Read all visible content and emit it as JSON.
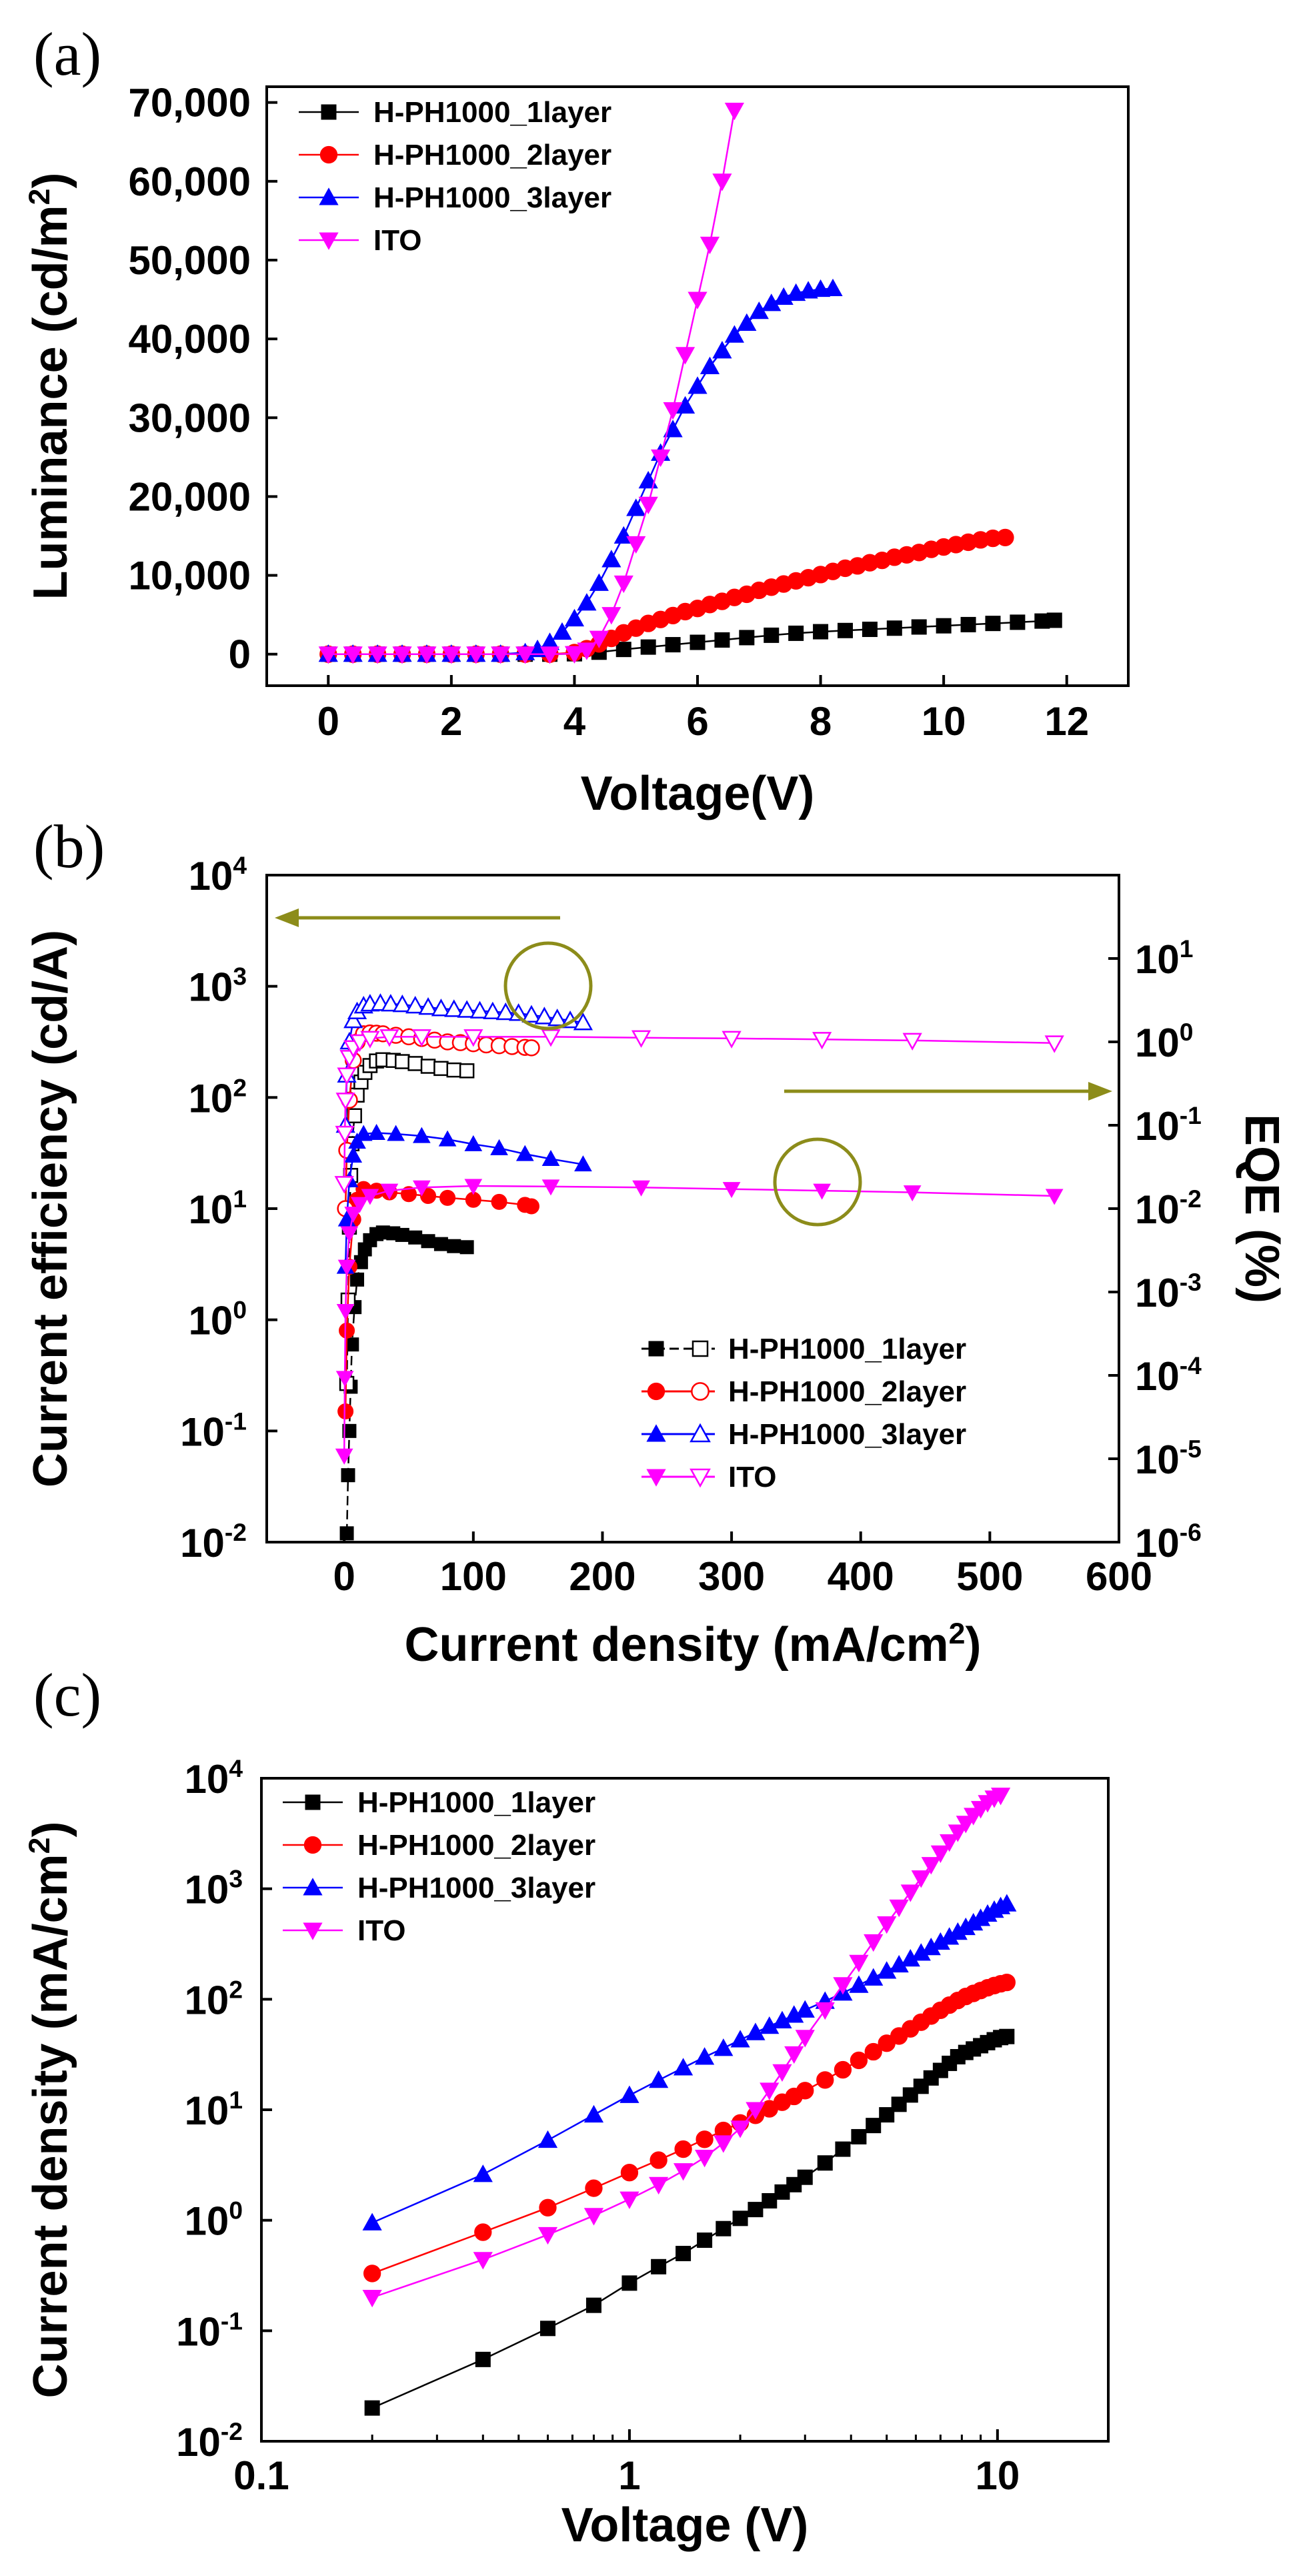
{
  "colors": {
    "black": "#000000",
    "red": "#ff0000",
    "blue": "#0000ff",
    "magenta": "#ff00ff",
    "olive": "#8c8c1a"
  },
  "chart_data": [
    {
      "panel": "(a)",
      "type": "line",
      "xlabel": "Voltage(V)",
      "ylabel_main": "Luminance (cd/m",
      "ylabel_sup": "2",
      "ylabel_end": ")",
      "xlim": [
        -1,
        13
      ],
      "ylim": [
        -4000,
        72000
      ],
      "x_ticks": [
        0,
        2,
        4,
        6,
        8,
        10,
        12
      ],
      "x_tick_labels": [
        "0",
        "2",
        "4",
        "6",
        "8",
        "10",
        "12"
      ],
      "y_ticks": [
        0,
        10000,
        20000,
        30000,
        40000,
        50000,
        60000,
        70000
      ],
      "y_tick_labels": [
        "0",
        "10,000",
        "20,000",
        "30,000",
        "40,000",
        "50,000",
        "60,000",
        "70,000"
      ],
      "legend_position": "top-left",
      "series": [
        {
          "name": "H-PH1000_1layer",
          "color": "#000000",
          "marker": "square",
          "x": [
            0,
            0.4,
            0.8,
            1.2,
            1.6,
            2.0,
            2.4,
            2.8,
            3.2,
            3.6,
            4.0,
            4.4,
            4.8,
            5.2,
            5.6,
            6.0,
            6.4,
            6.8,
            7.2,
            7.6,
            8.0,
            8.4,
            8.8,
            9.2,
            9.6,
            10.0,
            10.4,
            10.8,
            11.2,
            11.6,
            11.8
          ],
          "y": [
            0,
            0,
            0,
            0,
            0,
            0,
            0,
            0,
            0,
            0,
            50,
            250,
            600,
            900,
            1200,
            1500,
            1800,
            2100,
            2400,
            2650,
            2850,
            3000,
            3150,
            3300,
            3450,
            3600,
            3750,
            3900,
            4050,
            4200,
            4300
          ]
        },
        {
          "name": "H-PH1000_2layer",
          "color": "#ff0000",
          "marker": "circle",
          "x": [
            0,
            0.4,
            0.8,
            1.2,
            1.6,
            2.0,
            2.4,
            2.8,
            3.2,
            3.6,
            4.0,
            4.2,
            4.4,
            4.6,
            4.8,
            5.0,
            5.2,
            5.4,
            5.6,
            5.8,
            6.0,
            6.2,
            6.4,
            6.6,
            6.8,
            7.0,
            7.2,
            7.4,
            7.6,
            7.8,
            8.0,
            8.2,
            8.4,
            8.6,
            8.8,
            9.0,
            9.2,
            9.4,
            9.6,
            9.8,
            10.0,
            10.2,
            10.4,
            10.6,
            10.8,
            11.0
          ],
          "y": [
            0,
            0,
            0,
            0,
            0,
            0,
            0,
            0,
            0,
            0,
            200,
            700,
            1300,
            2000,
            2700,
            3300,
            3900,
            4400,
            4900,
            5400,
            5800,
            6300,
            6700,
            7200,
            7600,
            8100,
            8500,
            8900,
            9300,
            9700,
            10100,
            10500,
            10900,
            11200,
            11600,
            11900,
            12300,
            12600,
            12900,
            13300,
            13600,
            13900,
            14200,
            14500,
            14700,
            14800
          ]
        },
        {
          "name": "H-PH1000_3layer",
          "color": "#0000ff",
          "marker": "triangle-up",
          "x": [
            0,
            0.4,
            0.8,
            1.2,
            1.6,
            2.0,
            2.4,
            2.8,
            3.2,
            3.4,
            3.6,
            3.8,
            4.0,
            4.2,
            4.4,
            4.6,
            4.8,
            5.0,
            5.2,
            5.4,
            5.6,
            5.8,
            6.0,
            6.2,
            6.4,
            6.6,
            6.8,
            7.0,
            7.2,
            7.4,
            7.6,
            7.8,
            8.0,
            8.2
          ],
          "y": [
            0,
            0,
            0,
            0,
            0,
            0,
            0,
            0,
            200,
            600,
            1500,
            2800,
            4500,
            6500,
            9000,
            12000,
            15000,
            18500,
            22000,
            25500,
            28500,
            31500,
            34000,
            36500,
            38500,
            40500,
            42000,
            43500,
            44500,
            45300,
            45800,
            46100,
            46300,
            46400
          ]
        },
        {
          "name": "ITO",
          "color": "#ff00ff",
          "marker": "triangle-down",
          "x": [
            0,
            0.4,
            0.8,
            1.2,
            1.6,
            2.0,
            2.4,
            2.8,
            3.2,
            3.6,
            4.0,
            4.2,
            4.4,
            4.6,
            4.8,
            5.0,
            5.2,
            5.4,
            5.6,
            5.8,
            6.0,
            6.2,
            6.4,
            6.6
          ],
          "y": [
            0,
            0,
            0,
            0,
            0,
            0,
            0,
            0,
            0,
            0,
            50,
            500,
            2000,
            5000,
            9000,
            14000,
            19000,
            25000,
            31000,
            38000,
            45000,
            52000,
            60000,
            69000
          ]
        }
      ]
    },
    {
      "panel": "(b)",
      "type": "scatter",
      "xlabel_main": "Current density (mA/cm",
      "xlabel_sup": "2",
      "xlabel_end": ")",
      "ylabel_left": "Current efficiency (cd/A)",
      "ylabel_right": "EQE (%)",
      "xlim": [
        -60,
        600
      ],
      "ylim_left_log": [
        0.01,
        10000
      ],
      "ylim_right_log": [
        1e-06,
        100
      ],
      "x_ticks": [
        0,
        100,
        200,
        300,
        400,
        500,
        600
      ],
      "x_tick_labels": [
        "0",
        "100",
        "200",
        "300",
        "400",
        "500",
        "600"
      ],
      "left_tick_base": [
        "10",
        "10",
        "10",
        "10",
        "10",
        "10",
        "10"
      ],
      "left_tick_exp": [
        "-2",
        "-1",
        "0",
        "1",
        "2",
        "3",
        "4"
      ],
      "right_tick_base": [
        "10",
        "10",
        "10",
        "10",
        "10",
        "10",
        "10",
        "10"
      ],
      "right_tick_exp": [
        "-6",
        "-5",
        "-4",
        "-3",
        "-2",
        "-1",
        "0",
        "1"
      ],
      "legend_position": "bottom-right",
      "annotations": [
        "left arrow points to Current efficiency axis",
        "right arrow points to EQE axis"
      ],
      "series": [
        {
          "name": "H-PH1000_1layer",
          "color": "#000000",
          "marker": "square",
          "x_ce": [
            2,
            3,
            4,
            5,
            6,
            8,
            10,
            13,
            16,
            20,
            25,
            30,
            38,
            45,
            55,
            65,
            75,
            85,
            95
          ],
          "ce": [
            0.012,
            0.04,
            0.1,
            0.25,
            0.6,
            1.3,
            2.3,
            3.3,
            4.3,
            5.2,
            5.9,
            6.1,
            6.0,
            5.8,
            5.5,
            5.1,
            4.8,
            4.6,
            4.5
          ],
          "x_eqe": [
            2,
            3,
            4,
            5,
            6,
            8,
            10,
            13,
            16,
            20,
            25,
            30,
            38,
            45,
            55,
            65,
            75,
            85,
            95
          ],
          "eqe": [
            8e-05,
            0.0008,
            0.006,
            0.025,
            0.06,
            0.13,
            0.23,
            0.33,
            0.43,
            0.52,
            0.59,
            0.61,
            0.6,
            0.58,
            0.55,
            0.51,
            0.48,
            0.46,
            0.45
          ]
        },
        {
          "name": "H-PH1000_2layer",
          "color": "#ff0000",
          "marker": "circle",
          "x_ce": [
            1,
            2,
            4,
            7,
            10,
            15,
            25,
            35,
            50,
            65,
            80,
            100,
            120,
            140,
            145
          ],
          "ce": [
            0.15,
            0.8,
            3,
            8,
            12,
            15,
            14.5,
            14,
            13.5,
            13,
            12.5,
            12,
            11.5,
            10.8,
            10.5
          ],
          "x_eqe": [
            1,
            2,
            4,
            7,
            10,
            15,
            20,
            25,
            30,
            40,
            50,
            60,
            70,
            80,
            90,
            100,
            110,
            120,
            130,
            140,
            145
          ],
          "eqe": [
            0.01,
            0.05,
            0.2,
            0.6,
            1.0,
            1.25,
            1.28,
            1.27,
            1.25,
            1.2,
            1.15,
            1.1,
            1.05,
            1.0,
            0.98,
            0.95,
            0.92,
            0.9,
            0.88,
            0.86,
            0.85
          ]
        },
        {
          "name": "H-PH1000_3layer",
          "color": "#0000ff",
          "marker": "triangle-up",
          "x_ce": [
            1,
            2,
            4,
            7,
            10,
            15,
            25,
            40,
            60,
            80,
            100,
            120,
            140,
            160,
            185
          ],
          "ce": [
            3,
            8,
            18,
            30,
            40,
            47,
            48,
            47,
            45,
            42,
            38,
            35,
            31,
            28,
            25
          ],
          "x_eqe": [
            1,
            2,
            4,
            7,
            10,
            15,
            20,
            28,
            36,
            45,
            55,
            65,
            75,
            85,
            95,
            105,
            115,
            125,
            135,
            145,
            155,
            165,
            175,
            185
          ],
          "eqe": [
            0.1,
            0.4,
            1.0,
            1.8,
            2.3,
            2.7,
            2.85,
            2.9,
            2.85,
            2.8,
            2.7,
            2.6,
            2.5,
            2.45,
            2.4,
            2.35,
            2.3,
            2.25,
            2.2,
            2.1,
            2.0,
            1.9,
            1.8,
            1.7
          ]
        },
        {
          "name": "ITO",
          "color": "#ff00ff",
          "marker": "triangle-down",
          "x_ce": [
            0,
            0.5,
            1,
            2,
            4,
            7,
            12,
            20,
            35,
            60,
            100,
            160,
            230,
            300,
            370,
            440,
            550
          ],
          "ce": [
            0.06,
            0.3,
            1.2,
            3,
            6,
            9,
            11,
            13,
            14.5,
            15.5,
            16,
            15.8,
            15.5,
            15,
            14.5,
            14,
            13
          ],
          "x_eqe": [
            0,
            0.5,
            1,
            2,
            4,
            7,
            12,
            20,
            35,
            60,
            100,
            160,
            230,
            300,
            370,
            440,
            550
          ],
          "eqe": [
            0.02,
            0.08,
            0.2,
            0.4,
            0.65,
            0.85,
            1.0,
            1.1,
            1.15,
            1.15,
            1.15,
            1.15,
            1.12,
            1.1,
            1.07,
            1.04,
            0.97
          ]
        }
      ]
    },
    {
      "panel": "(c)",
      "type": "line",
      "xlabel": "Voltage (V)",
      "ylabel_main": "Current density (mA/cm",
      "ylabel_sup": "2",
      "ylabel_end": ")",
      "xlim_log": [
        0.1,
        20
      ],
      "ylim_log": [
        0.01,
        10000
      ],
      "x_tick_labels": [
        "0.1",
        "1",
        "10"
      ],
      "y_tick_base": [
        "10",
        "10",
        "10",
        "10",
        "10",
        "10",
        "10"
      ],
      "y_tick_exp": [
        "-2",
        "-1",
        "0",
        "1",
        "2",
        "3",
        "4"
      ],
      "legend_position": "top-left",
      "series": [
        {
          "name": "H-PH1000_1layer",
          "color": "#000000",
          "marker": "square",
          "x": [
            0.2,
            0.4,
            0.6,
            0.8,
            1.0,
            1.2,
            1.4,
            1.6,
            1.8,
            2.0,
            2.2,
            2.4,
            2.6,
            2.8,
            3.0,
            3.4,
            3.8,
            4.2,
            4.6,
            5.0,
            5.4,
            5.8,
            6.2,
            6.6,
            7.0,
            7.4,
            7.8,
            8.2,
            8.6,
            9.0,
            9.4,
            9.8,
            10.2,
            10.6
          ],
          "y": [
            0.02,
            0.055,
            0.105,
            0.17,
            0.27,
            0.38,
            0.5,
            0.66,
            0.84,
            1.04,
            1.25,
            1.5,
            1.8,
            2.1,
            2.45,
            3.3,
            4.4,
            5.7,
            7.2,
            9.0,
            11.2,
            13.6,
            16.3,
            19.4,
            22.7,
            26.3,
            30.2,
            33,
            35.5,
            38,
            40.5,
            43,
            45,
            46
          ]
        },
        {
          "name": "H-PH1000_2layer",
          "color": "#ff0000",
          "marker": "circle",
          "x": [
            0.2,
            0.4,
            0.6,
            0.8,
            1.0,
            1.2,
            1.4,
            1.6,
            1.8,
            2.0,
            2.2,
            2.4,
            2.6,
            2.8,
            3.0,
            3.4,
            3.8,
            4.2,
            4.6,
            5.0,
            5.4,
            5.8,
            6.2,
            6.6,
            7.0,
            7.4,
            7.8,
            8.2,
            8.6,
            9.0,
            9.4,
            9.8,
            10.2,
            10.6
          ],
          "y": [
            0.33,
            0.78,
            1.3,
            1.95,
            2.7,
            3.5,
            4.4,
            5.4,
            6.5,
            7.6,
            8.9,
            10.2,
            11.7,
            13.2,
            14.9,
            18.6,
            23,
            28,
            33.5,
            40,
            46.5,
            54,
            62,
            70.5,
            79.5,
            88.5,
            97.5,
            106,
            113,
            120,
            127,
            133,
            138,
            142
          ]
        },
        {
          "name": "H-PH1000_3layer",
          "color": "#0000ff",
          "marker": "triangle-up",
          "x": [
            0.2,
            0.4,
            0.6,
            0.8,
            1.0,
            1.2,
            1.4,
            1.6,
            1.8,
            2.0,
            2.2,
            2.4,
            2.6,
            2.8,
            3.0,
            3.4,
            3.8,
            4.2,
            4.6,
            5.0,
            5.4,
            5.8,
            6.2,
            6.6,
            7.0,
            7.4,
            7.8,
            8.2,
            8.6,
            9.0,
            9.4,
            9.8,
            10.2,
            10.6
          ],
          "y": [
            0.95,
            2.6,
            5.3,
            9,
            13.5,
            18.5,
            24,
            30,
            36,
            43,
            50,
            57,
            64,
            72,
            80,
            96,
            114,
            134,
            156,
            180,
            205,
            232,
            262,
            294,
            329,
            366,
            405,
            447,
            492,
            540,
            590,
            640,
            690,
            730
          ]
        },
        {
          "name": "ITO",
          "color": "#ff00ff",
          "marker": "triangle-down",
          "x": [
            0.2,
            0.4,
            0.6,
            0.8,
            1.0,
            1.2,
            1.4,
            1.6,
            1.8,
            2.0,
            2.2,
            2.4,
            2.6,
            2.8,
            3.0,
            3.4,
            3.8,
            4.2,
            4.6,
            5.0,
            5.4,
            5.8,
            6.2,
            6.6,
            7.0,
            7.4,
            7.8,
            8.2,
            8.6,
            9.0,
            9.4,
            9.8,
            10.2
          ],
          "y": [
            0.2,
            0.44,
            0.74,
            1.1,
            1.55,
            2.1,
            2.8,
            3.7,
            5.0,
            6.8,
            10,
            15,
            22,
            32,
            45,
            80,
            135,
            215,
            330,
            480,
            680,
            930,
            1250,
            1650,
            2100,
            2650,
            3250,
            3900,
            4600,
            5300,
            6000,
            6600,
            7000
          ]
        }
      ]
    }
  ]
}
